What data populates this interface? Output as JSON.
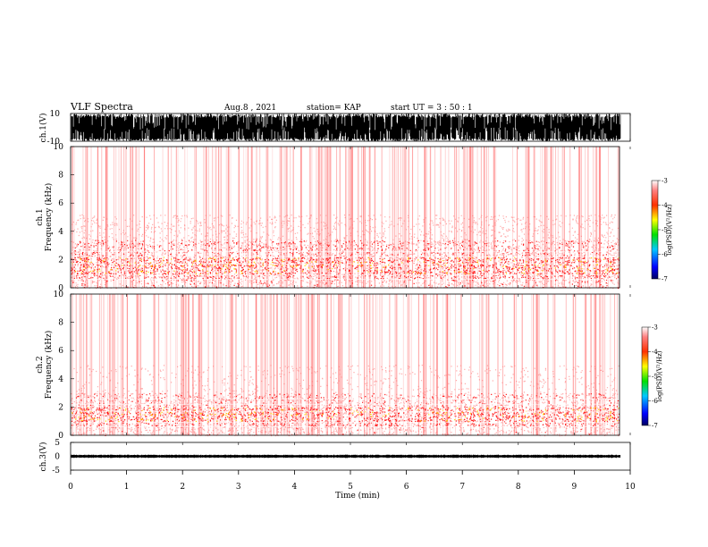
{
  "header": {
    "title": "VLF Spectra",
    "date": "Aug.8  , 2021",
    "station": "station= KAP",
    "start": "start  UT  =   3  : 50 : 1"
  },
  "chart_data": [
    {
      "type": "line",
      "name": "ch1-waveform",
      "ylabel": "ch.1(V)",
      "ylim": [
        -10,
        10
      ],
      "yticks": [
        "10",
        "-10"
      ],
      "xlim": [
        0,
        10
      ],
      "data_end_min": 9.83,
      "note_values": "dense saturated waveform spanning roughly -10 to 10 V"
    },
    {
      "type": "heatmap",
      "name": "ch1-spectrogram",
      "ylabel_line1": "ch.1",
      "ylabel_line2": "Frequency  (kHz)",
      "ylim": [
        0,
        10
      ],
      "yticks": [
        "0",
        "2",
        "4",
        "6",
        "8",
        "10"
      ],
      "xlim": [
        0,
        10
      ],
      "colorbar": {
        "label": "log(PSD)(V²/Hz)",
        "ticks": [
          "-3",
          "-4",
          "-5",
          "-6",
          "-7"
        ],
        "range": [
          -7,
          -3
        ]
      },
      "bands_khz": [
        {
          "f0": 0.0,
          "f1": 0.6,
          "level": -4.8
        },
        {
          "f0": 0.6,
          "f1": 1.0,
          "level": -4.3
        },
        {
          "f0": 1.0,
          "f1": 2.2,
          "level": -3.9
        },
        {
          "f0": 2.2,
          "f1": 3.4,
          "level": -4.6
        },
        {
          "f0": 3.4,
          "f1": 5.2,
          "level": -5.2
        },
        {
          "f0": 5.2,
          "f1": 10.0,
          "level": -5.8
        }
      ]
    },
    {
      "type": "heatmap",
      "name": "ch2-spectrogram",
      "ylabel_line1": "ch.2",
      "ylabel_line2": "Frequency  (kHz)",
      "ylim": [
        0,
        10
      ],
      "yticks": [
        "0",
        "2",
        "4",
        "6",
        "8",
        "10"
      ],
      "xlim": [
        0,
        10
      ],
      "colorbar": {
        "label": "log(PSD)(V²/Hz)",
        "ticks": [
          "-3",
          "-4",
          "-5",
          "-6",
          "-7"
        ],
        "range": [
          -7,
          -3
        ]
      },
      "bands_khz": [
        {
          "f0": 0.0,
          "f1": 0.6,
          "level": -4.9
        },
        {
          "f0": 0.6,
          "f1": 1.0,
          "level": -4.4
        },
        {
          "f0": 1.0,
          "f1": 2.0,
          "level": -3.9
        },
        {
          "f0": 2.0,
          "f1": 3.0,
          "level": -4.7
        },
        {
          "f0": 3.0,
          "f1": 5.0,
          "level": -5.4
        },
        {
          "f0": 5.0,
          "f1": 10.0,
          "level": -6.0
        }
      ]
    },
    {
      "type": "line",
      "name": "ch3-waveform",
      "ylabel": "ch.3(V)",
      "ylim": [
        -5,
        5
      ],
      "yticks": [
        "5",
        "0",
        "-5"
      ],
      "xlim": [
        0,
        10
      ],
      "level_v": 0,
      "amplitude_v": 0.6,
      "data_end_min": 9.83
    }
  ],
  "xaxis": {
    "label": "Time  (min)",
    "ticks": [
      "0",
      "1",
      "2",
      "3",
      "4",
      "5",
      "6",
      "7",
      "8",
      "9",
      "10"
    ]
  },
  "colors": {
    "heat_low": "#ffffff",
    "heat_mid": "#ff2020",
    "heat_high": "#ffd200",
    "waveform": "#000000"
  }
}
